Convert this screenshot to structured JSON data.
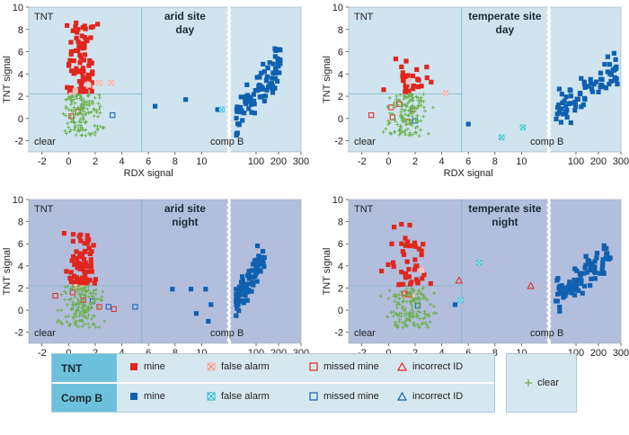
{
  "colors": {
    "day_bg": "#cfe4ee",
    "night_bg": "#b3bedd",
    "tnt_mine": "#e0261d",
    "compb_mine": "#1060b0",
    "false_alarm_tnt": "#f0a6a0",
    "missed_tnt": "#e0261d",
    "incorrect_tnt": "#e0261d",
    "false_alarm_compb": "#18b5c8",
    "missed_compb": "#1060b0",
    "incorrect_compb": "#1060b0",
    "clear": "#6ab04c",
    "legend_head": "#6ec1dd",
    "legend_bg": "#d6e8ef"
  },
  "chart_data": [
    {
      "type": "scatter",
      "title": "arid site day",
      "xlabel": "RDX signal",
      "ylabel": "TNT signal",
      "x_ticks_linear": [
        -2,
        0,
        2,
        4,
        6,
        8,
        10
      ],
      "x_ticks_broken": [
        100,
        200,
        300
      ],
      "y_ticks": [
        -2,
        0,
        2,
        4,
        6,
        8,
        10
      ],
      "ylim": [
        -3,
        10
      ],
      "region_labels": {
        "tnt": "TNT",
        "clear": "clear",
        "compb": "comp B"
      },
      "tnt_threshold_y": 2.2,
      "rdx_threshold_x": 5.5,
      "series": [
        {
          "name": "TNT mine",
          "count": 80,
          "x_center": 1.0,
          "x_spread": 0.9,
          "y_min": 2.4,
          "y_max": 8.7
        },
        {
          "name": "TNT false alarm",
          "points": [
            [
              0.5,
              2.5
            ],
            [
              1.5,
              3.0
            ],
            [
              2.3,
              3.2
            ],
            [
              3.2,
              3.2
            ],
            [
              0.2,
              2.1
            ]
          ]
        },
        {
          "name": "TNT missed mine",
          "points": [
            [
              0.2,
              0.2
            ],
            [
              0.7,
              0.6
            ]
          ]
        },
        {
          "name": "Comp B mine (linear)",
          "points": [
            [
              6.5,
              1.1
            ],
            [
              8.8,
              1.7
            ],
            [
              11.2,
              0.8
            ]
          ]
        },
        {
          "name": "Comp B mine (broken axis)",
          "count": 90,
          "x_min": 10,
          "x_max": 210,
          "y_min": -1.5,
          "y_max": 7.3
        },
        {
          "name": "Comp B false alarm",
          "points": [
            [
              11.5,
              0.8
            ]
          ]
        },
        {
          "name": "Comp B missed mine",
          "points": [
            [
              3.3,
              0.3
            ]
          ]
        },
        {
          "name": "clear",
          "count": 140,
          "x_center": 1.0,
          "x_spread": 1.3,
          "y_min": -1.6,
          "y_max": 2.2
        }
      ]
    },
    {
      "type": "scatter",
      "title": "temperate site day",
      "xlabel": "RDX signal",
      "ylabel": "TNT signal",
      "x_ticks_linear": [
        -2,
        0,
        2,
        4,
        6,
        8,
        10
      ],
      "x_ticks_broken": [
        100,
        200,
        300
      ],
      "y_ticks": [
        -2,
        0,
        2,
        4,
        6,
        8,
        10
      ],
      "ylim": [
        -3,
        10
      ],
      "region_labels": {
        "tnt": "TNT",
        "clear": "clear",
        "compb": "comp B"
      },
      "tnt_threshold_y": 2.2,
      "rdx_threshold_x": 5.5,
      "series": [
        {
          "name": "TNT mine",
          "count": 28,
          "x_center": 1.5,
          "x_spread": 1.3,
          "y_min": 2.4,
          "y_max": 5.6
        },
        {
          "name": "TNT false alarm",
          "points": [
            [
              1.5,
              3.3
            ],
            [
              4.3,
              2.3
            ]
          ]
        },
        {
          "name": "TNT missed mine",
          "points": [
            [
              -1.3,
              0.3
            ],
            [
              0.2,
              1.0
            ],
            [
              0.8,
              1.3
            ],
            [
              1.8,
              0.8
            ],
            [
              0.3,
              0.1
            ],
            [
              1.5,
              -0.3
            ]
          ]
        },
        {
          "name": "Comp B mine (linear)",
          "points": [
            [
              6.0,
              -0.5
            ]
          ]
        },
        {
          "name": "Comp B mine (broken axis)",
          "count": 80,
          "x_min": 10,
          "x_max": 290,
          "y_min": -0.7,
          "y_max": 6.6
        },
        {
          "name": "Comp B false alarm",
          "points": [
            [
              8.5,
              -1.7
            ],
            [
              10.1,
              -0.8
            ]
          ]
        },
        {
          "name": "Comp B missed mine",
          "points": [
            [
              2.0,
              -0.2
            ]
          ]
        },
        {
          "name": "clear",
          "count": 140,
          "x_center": 1.5,
          "x_spread": 1.4,
          "y_min": -1.6,
          "y_max": 2.2
        }
      ]
    },
    {
      "type": "scatter",
      "title": "arid site night",
      "xlabel": "RDX signal",
      "ylabel": "TNT signal",
      "x_ticks_linear": [
        -2,
        0,
        2,
        4,
        6,
        8,
        10
      ],
      "x_ticks_broken": [
        100,
        200,
        300
      ],
      "y_ticks": [
        -2,
        0,
        2,
        4,
        6,
        8,
        10
      ],
      "ylim": [
        -3,
        10
      ],
      "region_labels": {
        "tnt": "TNT",
        "clear": "clear",
        "compb": "comp B"
      },
      "tnt_threshold_y": 2.2,
      "rdx_threshold_x": 5.5,
      "series": [
        {
          "name": "TNT mine",
          "count": 80,
          "x_center": 0.9,
          "x_spread": 1.0,
          "y_min": 2.4,
          "y_max": 7.0
        },
        {
          "name": "TNT false alarm",
          "points": [
            [
              0.5,
              2.1
            ],
            [
              1.0,
              2.0
            ]
          ]
        },
        {
          "name": "TNT missed mine",
          "points": [
            [
              -1.0,
              1.3
            ],
            [
              0.3,
              1.6
            ],
            [
              1.1,
              0.9
            ],
            [
              2.3,
              0.3
            ],
            [
              3.4,
              0.1
            ]
          ]
        },
        {
          "name": "Comp B mine (linear)",
          "points": [
            [
              7.8,
              1.9
            ],
            [
              9.2,
              1.9
            ],
            [
              9.6,
              -0.3
            ],
            [
              10.3,
              1.9
            ],
            [
              10.5,
              -1.0
            ],
            [
              10.7,
              0.5
            ]
          ]
        },
        {
          "name": "Comp B mine (broken axis)",
          "count": 80,
          "x_min": 10,
          "x_max": 140,
          "y_min": -0.5,
          "y_max": 6.8
        },
        {
          "name": "Comp B missed mine",
          "points": [
            [
              1.8,
              0.8
            ],
            [
              3.0,
              0.3
            ],
            [
              5.0,
              0.3
            ]
          ]
        },
        {
          "name": "clear",
          "count": 150,
          "x_center": 1.0,
          "x_spread": 1.3,
          "y_min": -1.6,
          "y_max": 2.2
        }
      ]
    },
    {
      "type": "scatter",
      "title": "temperate site night",
      "xlabel": "RDX signal",
      "ylabel": "TNT signal",
      "x_ticks_linear": [
        -2,
        0,
        2,
        4,
        6,
        8,
        10
      ],
      "x_ticks_broken": [
        100,
        200,
        300
      ],
      "y_ticks": [
        -2,
        0,
        2,
        4,
        6,
        8,
        10
      ],
      "ylim": [
        -3,
        10
      ],
      "region_labels": {
        "tnt": "TNT",
        "clear": "clear",
        "compb": "comp B"
      },
      "tnt_threshold_y": 2.2,
      "rdx_threshold_x": 5.5,
      "series": [
        {
          "name": "TNT mine",
          "count": 45,
          "x_center": 1.5,
          "x_spread": 1.5,
          "y_min": 2.3,
          "y_max": 7.8
        },
        {
          "name": "TNT false alarm",
          "points": [
            [
              1.2,
              1.3
            ],
            [
              1.8,
              1.2
            ],
            [
              2.5,
              3.6
            ]
          ]
        },
        {
          "name": "TNT missed mine",
          "points": [
            [
              1.2,
              1.5
            ],
            [
              1.5,
              1.4
            ]
          ]
        },
        {
          "name": "TNT incorrect ID",
          "points": [
            [
              5.3,
              2.7
            ],
            [
              10.7,
              2.2
            ]
          ]
        },
        {
          "name": "Comp B mine (linear)",
          "points": [
            [
              5.0,
              0.5
            ]
          ]
        },
        {
          "name": "Comp B mine (broken axis)",
          "count": 85,
          "x_min": 10,
          "x_max": 260,
          "y_min": -0.2,
          "y_max": 7.0
        },
        {
          "name": "Comp B false alarm",
          "points": [
            [
              5.4,
              0.9
            ],
            [
              6.8,
              4.3
            ]
          ]
        },
        {
          "name": "Comp B missed mine",
          "points": [
            [
              2.2,
              0.4
            ]
          ]
        },
        {
          "name": "clear",
          "count": 140,
          "x_center": 1.5,
          "x_spread": 1.5,
          "y_min": -1.6,
          "y_max": 2.2
        }
      ]
    }
  ],
  "legend": {
    "tnt_row": {
      "head": "TNT",
      "mine": "mine",
      "false_alarm": "false alarm",
      "missed": "missed mine",
      "incorrect": "incorrect ID"
    },
    "compb_row": {
      "head": "Comp B",
      "mine": "mine",
      "false_alarm": "false alarm",
      "missed": "missed mine",
      "incorrect": "incorrect ID"
    },
    "clear": "clear"
  }
}
